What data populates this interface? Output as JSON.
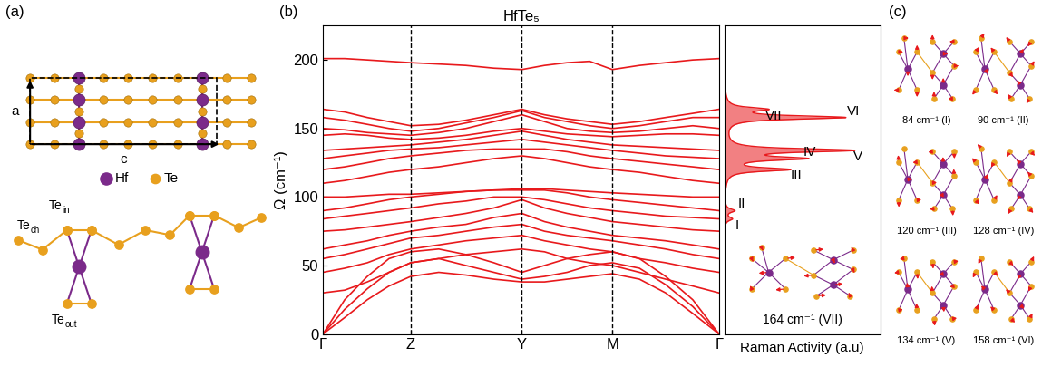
{
  "panel_labels": [
    "(a)",
    "(b)",
    "(c)"
  ],
  "structure": {
    "axis_labels": {
      "vertical": "a",
      "horizontal": "c"
    },
    "legend": [
      {
        "name": "Hf",
        "color": "#7b2a8a"
      },
      {
        "name": "Te",
        "color": "#e8a01e"
      }
    ],
    "site_labels": [
      {
        "main": "Te",
        "sub": "ch"
      },
      {
        "main": "Te",
        "sub": "in"
      },
      {
        "main": "Te",
        "sub": "out"
      }
    ]
  },
  "chart_data": [
    {
      "type": "line",
      "title": "HfTe₅",
      "y_label": "Ω (cm⁻¹)",
      "x": [
        0,
        0.24,
        0.49,
        0.73,
        0.97,
        1.28,
        1.58,
        1.89,
        2.2,
        2.45,
        2.7,
        2.95,
        3.2,
        3.5,
        3.79,
        4.09,
        4.38
      ],
      "xlim": [
        0,
        4.38
      ],
      "xticks": [
        {
          "value": 0,
          "label": "Γ"
        },
        {
          "value": 0.97,
          "label": "Z"
        },
        {
          "value": 2.2,
          "label": "Y"
        },
        {
          "value": 3.2,
          "label": "M"
        },
        {
          "value": 4.38,
          "label": "Γ"
        }
      ],
      "ylim": [
        0,
        225
      ],
      "yticks": [
        0,
        50,
        100,
        150,
        200
      ],
      "color": "#e8191c",
      "series": [
        {
          "values": [
            0,
            12,
            25,
            35,
            42,
            45,
            43,
            40,
            38,
            38,
            40,
            42,
            44,
            40,
            30,
            15,
            0
          ]
        },
        {
          "values": [
            0,
            18,
            33,
            45,
            52,
            55,
            50,
            45,
            40,
            42,
            45,
            50,
            52,
            48,
            36,
            20,
            0
          ]
        },
        {
          "values": [
            0,
            25,
            42,
            55,
            60,
            62,
            58,
            52,
            45,
            50,
            55,
            58,
            60,
            55,
            42,
            25,
            0
          ]
        },
        {
          "values": [
            30,
            32,
            38,
            45,
            52,
            55,
            58,
            60,
            62,
            60,
            55,
            52,
            50,
            45,
            40,
            35,
            30
          ]
        },
        {
          "values": [
            45,
            48,
            52,
            58,
            62,
            65,
            68,
            70,
            72,
            68,
            65,
            62,
            60,
            55,
            52,
            48,
            45
          ]
        },
        {
          "values": [
            55,
            58,
            62,
            66,
            70,
            72,
            75,
            78,
            80,
            75,
            72,
            70,
            68,
            65,
            62,
            58,
            55
          ]
        },
        {
          "values": [
            62,
            65,
            68,
            72,
            75,
            78,
            80,
            85,
            88,
            82,
            78,
            75,
            72,
            70,
            68,
            65,
            62
          ]
        },
        {
          "values": [
            75,
            76,
            78,
            80,
            82,
            85,
            88,
            92,
            98,
            92,
            88,
            85,
            82,
            80,
            78,
            76,
            75
          ]
        },
        {
          "values": [
            84,
            86,
            88,
            90,
            92,
            95,
            97,
            100,
            100,
            98,
            95,
            92,
            90,
            88,
            86,
            85,
            84
          ]
        },
        {
          "values": [
            90,
            92,
            95,
            98,
            100,
            102,
            104,
            105,
            105,
            105,
            103,
            100,
            98,
            96,
            94,
            92,
            90
          ]
        },
        {
          "values": [
            100,
            100,
            101,
            102,
            102,
            103,
            104,
            105,
            106,
            106,
            105,
            104,
            103,
            102,
            101,
            100,
            100
          ]
        },
        {
          "values": [
            110,
            112,
            115,
            118,
            120,
            122,
            125,
            128,
            130,
            128,
            125,
            122,
            120,
            118,
            115,
            112,
            110
          ]
        },
        {
          "values": [
            120,
            122,
            125,
            128,
            130,
            132,
            134,
            135,
            135,
            135,
            133,
            130,
            128,
            126,
            124,
            122,
            120
          ]
        },
        {
          "values": [
            128,
            130,
            132,
            134,
            135,
            136,
            138,
            140,
            142,
            140,
            138,
            136,
            134,
            132,
            130,
            129,
            128
          ]
        },
        {
          "values": [
            134,
            135,
            136,
            137,
            138,
            140,
            142,
            145,
            148,
            145,
            142,
            140,
            138,
            137,
            136,
            135,
            134
          ]
        },
        {
          "values": [
            145,
            146,
            145,
            143,
            142,
            143,
            145,
            148,
            150,
            148,
            146,
            145,
            144,
            145,
            146,
            146,
            145
          ]
        },
        {
          "values": [
            150,
            149,
            147,
            146,
            145,
            147,
            150,
            155,
            160,
            155,
            150,
            148,
            147,
            148,
            150,
            152,
            150
          ]
        },
        {
          "values": [
            158,
            156,
            153,
            150,
            148,
            150,
            154,
            158,
            163,
            158,
            155,
            152,
            150,
            152,
            155,
            158,
            158
          ]
        },
        {
          "values": [
            164,
            162,
            158,
            155,
            152,
            153,
            156,
            160,
            164,
            160,
            157,
            155,
            153,
            155,
            158,
            161,
            164
          ]
        },
        {
          "values": [
            201,
            201,
            200,
            199,
            198,
            197,
            196,
            194,
            193,
            196,
            198,
            199,
            193,
            196,
            198,
            200,
            201
          ]
        }
      ]
    },
    {
      "type": "area",
      "x_label": "Raman Activity (a.u)",
      "xlim": [
        0,
        1.25
      ],
      "ylim": [
        0,
        225
      ],
      "tick_labels": false,
      "color": "#e8191c",
      "peaks": {
        "frequency": [
          84,
          90,
          120,
          128,
          134,
          158,
          164
        ],
        "intensity": [
          0.06,
          0.08,
          0.5,
          0.6,
          1.0,
          0.95,
          0.3
        ],
        "width": [
          1.5,
          1.5,
          1.5,
          1.5,
          1.5,
          1.5,
          1.5
        ],
        "labels": [
          "I",
          "II",
          "III",
          "IV",
          "V",
          "VI",
          "VII"
        ]
      },
      "inset_caption": "164 cm⁻¹ (VII)"
    }
  ],
  "modes": [
    {
      "caption": "84 cm⁻¹ (I)"
    },
    {
      "caption": "90 cm⁻¹ (II)"
    },
    {
      "caption": "120 cm⁻¹ (III)"
    },
    {
      "caption": "128 cm⁻¹ (IV)"
    },
    {
      "caption": "134 cm⁻¹ (V)"
    },
    {
      "caption": "158 cm⁻¹ (VI)"
    }
  ]
}
